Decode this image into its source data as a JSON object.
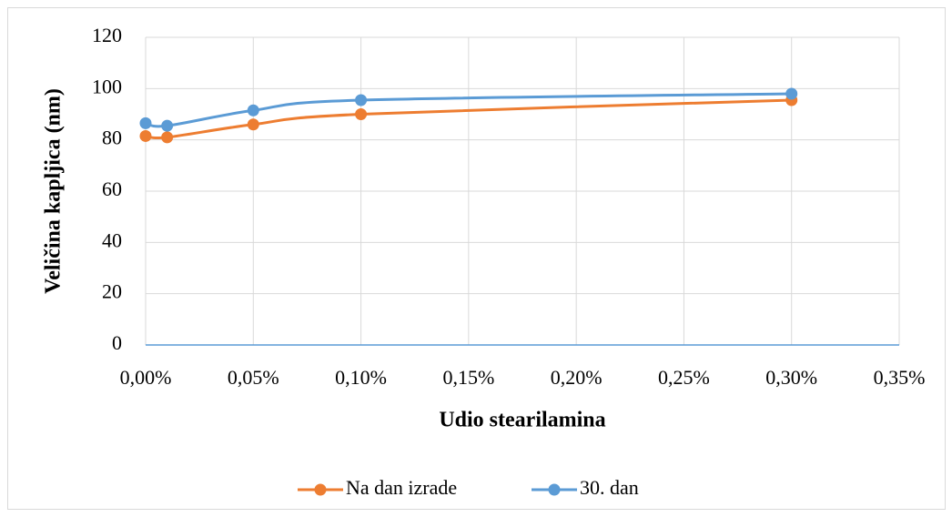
{
  "chart_data": {
    "type": "line",
    "xlabel": "Udio stearilamina",
    "ylabel": "Veličina kapljica (nm)",
    "x": [
      0,
      0.01,
      0.05,
      0.1,
      0.3
    ],
    "series": [
      {
        "name": "Na dan izrade",
        "color": "#ed7d31",
        "values": [
          81.5,
          81,
          86,
          90,
          95.5
        ]
      },
      {
        "name": "30. dan",
        "color": "#5b9bd5",
        "values": [
          86.5,
          85.5,
          91.5,
          95.5,
          98
        ]
      }
    ],
    "xlim": [
      0,
      0.35
    ],
    "xticks": [
      {
        "value": 0,
        "label": "0,00%"
      },
      {
        "value": 0.05,
        "label": "0,05%"
      },
      {
        "value": 0.1,
        "label": "0,10%"
      },
      {
        "value": 0.15,
        "label": "0,15%"
      },
      {
        "value": 0.2,
        "label": "0,20%"
      },
      {
        "value": 0.25,
        "label": "0,25%"
      },
      {
        "value": 0.3,
        "label": "0,30%"
      },
      {
        "value": 0.35,
        "label": "0,35%"
      }
    ],
    "ylim": [
      0,
      120
    ],
    "yticks": [
      0,
      20,
      40,
      60,
      80,
      100,
      120
    ],
    "grid": true,
    "legend": "bottom"
  }
}
